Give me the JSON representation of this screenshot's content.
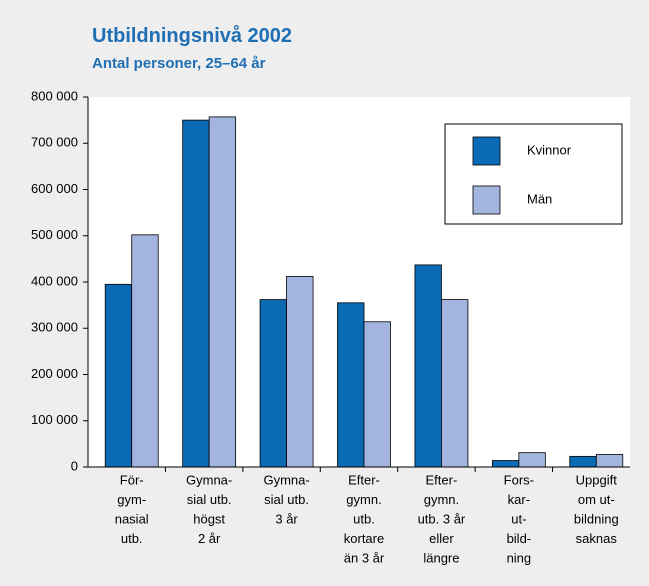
{
  "chart_data": {
    "type": "bar",
    "title": "Utbildningsnivå 2002",
    "subtitle": "Antal personer, 25–64 år",
    "categories": [
      [
        "För-",
        "gym-",
        "nasial",
        "utb."
      ],
      [
        "Gymna-",
        "sial utb.",
        "högst",
        "2 år"
      ],
      [
        "Gymna-",
        "sial utb.",
        "3 år"
      ],
      [
        "Efter-",
        "gymn.",
        "utb.",
        "kortare",
        "än 3 år"
      ],
      [
        "Efter-",
        "gymn.",
        "utb. 3 år",
        "eller",
        "längre"
      ],
      [
        "Fors-",
        "kar-",
        "ut-",
        "bild-",
        "ning"
      ],
      [
        "Uppgift",
        "om ut-",
        "bildning",
        "saknas"
      ]
    ],
    "series": [
      {
        "name": "Kvinnor",
        "color": "#0a6ab4",
        "values": [
          395000,
          750000,
          362000,
          355000,
          437000,
          14000,
          23000
        ]
      },
      {
        "name": "Män",
        "color": "#a3b5df",
        "values": [
          502000,
          757000,
          412000,
          314000,
          362000,
          31000,
          27000
        ]
      }
    ],
    "ylim": [
      0,
      800000
    ],
    "yticks": [
      0,
      {
        "value": 100000,
        "label": "100 000"
      },
      {
        "value": 200000,
        "label": "200 000"
      },
      {
        "value": 300000,
        "label": "300 000"
      },
      {
        "value": 400000,
        "label": "400 000"
      },
      {
        "value": 500000,
        "label": "500 000"
      },
      {
        "value": 600000,
        "label": "600 000"
      },
      {
        "value": 700000,
        "label": "700 000"
      },
      {
        "value": 800000,
        "label": "800 000"
      }
    ],
    "grid": false,
    "legend": "upper right"
  }
}
